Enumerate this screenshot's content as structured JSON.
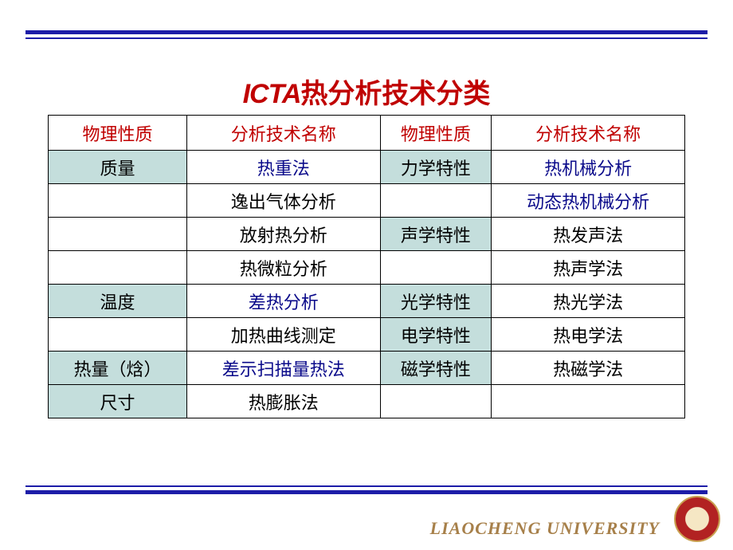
{
  "title": {
    "prefix": "ICTA",
    "rest": "热分析技术分类"
  },
  "colors": {
    "accent_red": "#c00000",
    "navy_line": "#1c1ca8",
    "shaded_bg": "#c4dedc",
    "text_blue": "#0a0a8a",
    "uni_gold": "#a7804a"
  },
  "table": {
    "headers": [
      "物理性质",
      "分析技术名称",
      "物理性质",
      "分析技术名称"
    ],
    "rows": [
      [
        {
          "text": "质量",
          "shaded": true
        },
        {
          "text": "热重法",
          "color": "blue"
        },
        {
          "text": "力学特性",
          "shaded": true
        },
        {
          "text": "热机械分析",
          "color": "blue"
        }
      ],
      [
        {
          "text": ""
        },
        {
          "text": "逸出气体分析",
          "color": "black"
        },
        {
          "text": ""
        },
        {
          "text": "动态热机械分析",
          "color": "blue"
        }
      ],
      [
        {
          "text": ""
        },
        {
          "text": "放射热分析",
          "color": "black"
        },
        {
          "text": "声学特性",
          "shaded": true
        },
        {
          "text": "热发声法",
          "color": "black"
        }
      ],
      [
        {
          "text": ""
        },
        {
          "text": "热微粒分析",
          "color": "black"
        },
        {
          "text": ""
        },
        {
          "text": "热声学法",
          "color": "black"
        }
      ],
      [
        {
          "text": "温度",
          "shaded": true
        },
        {
          "text": "差热分析",
          "color": "blue"
        },
        {
          "text": "光学特性",
          "shaded": true
        },
        {
          "text": "热光学法",
          "color": "black"
        }
      ],
      [
        {
          "text": ""
        },
        {
          "text": "加热曲线测定",
          "color": "black"
        },
        {
          "text": "电学特性",
          "shaded": true
        },
        {
          "text": "热电学法",
          "color": "black"
        }
      ],
      [
        {
          "text": "热量（焓）",
          "shaded": true
        },
        {
          "text": "差示扫描量热法",
          "color": "blue"
        },
        {
          "text": "磁学特性",
          "shaded": true
        },
        {
          "text": "热磁学法",
          "color": "black"
        }
      ],
      [
        {
          "text": "尺寸",
          "shaded": true
        },
        {
          "text": "热膨胀法",
          "color": "black"
        },
        {
          "text": ""
        },
        {
          "text": ""
        }
      ]
    ]
  },
  "footer": {
    "university": "LIAOCHENG UNIVERSITY"
  }
}
